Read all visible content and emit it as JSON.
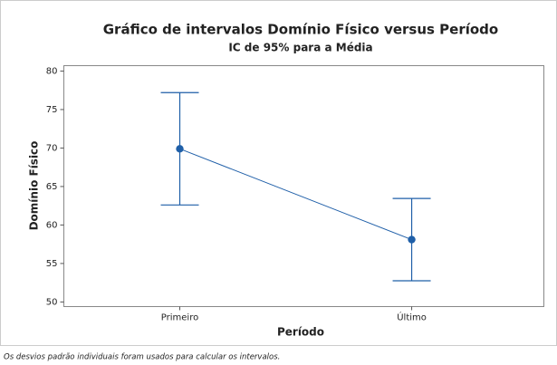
{
  "chart_data": {
    "type": "interval",
    "title": "Gráfico de intervalos Domínio Físico versus Período",
    "subtitle": "IC de 95% para a Média",
    "x_label": "Período",
    "y_label": "Domínio Físico",
    "footnote": "Os desvios padrão individuais foram usados para calcular os intervalos.",
    "categories": [
      "Primeiro",
      "Último"
    ],
    "values": [
      69.9,
      58.1
    ],
    "errors": [
      7.3,
      5.35
    ],
    "color": "#1f5fa8",
    "ylim": [
      49.4,
      80.7
    ],
    "yticks": [
      50,
      55,
      60,
      65,
      70,
      75,
      80
    ]
  }
}
